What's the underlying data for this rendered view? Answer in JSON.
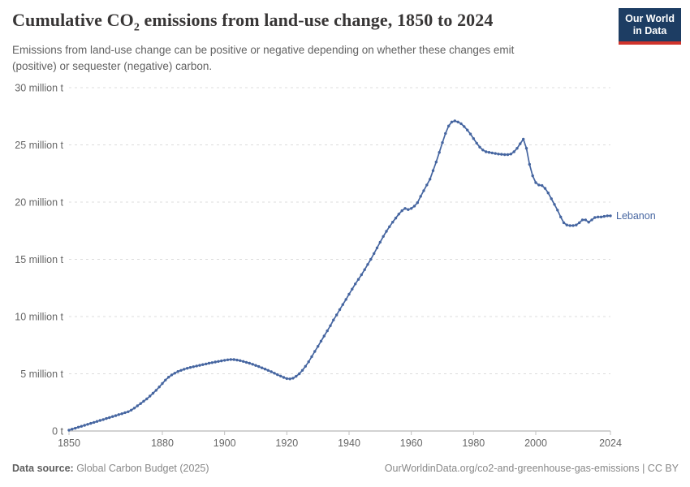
{
  "header": {
    "title_pre": "Cumulative CO",
    "title_sub": "2",
    "title_post": " emissions from land-use change, 1850 to 2024",
    "subtitle_line1": "Emissions from land-use change can be positive or negative depending on whether these changes emit",
    "subtitle_line2": "(positive) or sequester (negative) carbon."
  },
  "logo": {
    "line1": "Our World",
    "line2": "in Data",
    "bg_color": "#1d3d63",
    "accent_color": "#d0342c"
  },
  "chart_data": {
    "type": "line",
    "title": "Cumulative CO2 emissions from land-use change, 1850 to 2024",
    "unit": "million t",
    "ylabel": "",
    "xlabel": "",
    "ylim": [
      0,
      30
    ],
    "grid": true,
    "legend_position": "end-of-line",
    "yticks": [
      {
        "value": 0,
        "label": "0 t"
      },
      {
        "value": 5,
        "label": "5 million t"
      },
      {
        "value": 10,
        "label": "10 million t"
      },
      {
        "value": 15,
        "label": "15 million t"
      },
      {
        "value": 20,
        "label": "20 million t"
      },
      {
        "value": 25,
        "label": "25 million t"
      },
      {
        "value": 30,
        "label": "30 million t"
      }
    ],
    "xticks": [
      1850,
      1880,
      1900,
      1920,
      1940,
      1960,
      1980,
      2000,
      2024
    ],
    "x": {
      "start": 1850,
      "step": 1,
      "count": 175,
      "end": 2024
    },
    "series": [
      {
        "name": "Lebanon",
        "color": "#4565a0",
        "values": [
          0.07,
          0.16,
          0.24,
          0.33,
          0.41,
          0.5,
          0.58,
          0.67,
          0.75,
          0.84,
          0.92,
          1.0,
          1.09,
          1.17,
          1.26,
          1.34,
          1.43,
          1.51,
          1.6,
          1.68,
          1.82,
          2.0,
          2.2,
          2.4,
          2.6,
          2.8,
          3.05,
          3.3,
          3.55,
          3.85,
          4.15,
          4.45,
          4.7,
          4.9,
          5.05,
          5.2,
          5.3,
          5.4,
          5.48,
          5.55,
          5.62,
          5.68,
          5.74,
          5.8,
          5.86,
          5.92,
          5.97,
          6.03,
          6.08,
          6.13,
          6.18,
          6.22,
          6.25,
          6.24,
          6.2,
          6.15,
          6.08,
          6.0,
          5.92,
          5.83,
          5.73,
          5.63,
          5.52,
          5.41,
          5.3,
          5.18,
          5.05,
          4.92,
          4.8,
          4.68,
          4.58,
          4.55,
          4.62,
          4.78,
          5.0,
          5.3,
          5.65,
          6.05,
          6.5,
          6.95,
          7.4,
          7.85,
          8.3,
          8.75,
          9.2,
          9.7,
          10.15,
          10.6,
          11.05,
          11.5,
          11.95,
          12.4,
          12.85,
          13.25,
          13.65,
          14.1,
          14.55,
          15.0,
          15.5,
          16.0,
          16.5,
          17.0,
          17.45,
          17.85,
          18.25,
          18.6,
          18.95,
          19.25,
          19.45,
          19.35,
          19.45,
          19.65,
          19.95,
          20.5,
          21.0,
          21.5,
          22.0,
          22.75,
          23.5,
          24.35,
          25.2,
          26.0,
          26.65,
          27.0,
          27.1,
          27.0,
          26.85,
          26.6,
          26.3,
          25.95,
          25.55,
          25.15,
          24.8,
          24.55,
          24.4,
          24.35,
          24.3,
          24.25,
          24.2,
          24.18,
          24.15,
          24.15,
          24.2,
          24.4,
          24.7,
          25.1,
          25.5,
          24.7,
          23.3,
          22.3,
          21.7,
          21.5,
          21.45,
          21.2,
          20.8,
          20.3,
          19.8,
          19.3,
          18.7,
          18.2,
          18.0,
          17.95,
          17.95,
          18.0,
          18.2,
          18.45,
          18.45,
          18.25,
          18.45,
          18.65,
          18.7,
          18.7,
          18.75,
          18.8,
          18.8
        ]
      }
    ]
  },
  "footer": {
    "datasource_label": "Data source:",
    "datasource_value": " Global Carbon Budget (2025)",
    "license_text": "OurWorldinData.org/co2-and-greenhouse-gas-emissions | CC BY"
  }
}
